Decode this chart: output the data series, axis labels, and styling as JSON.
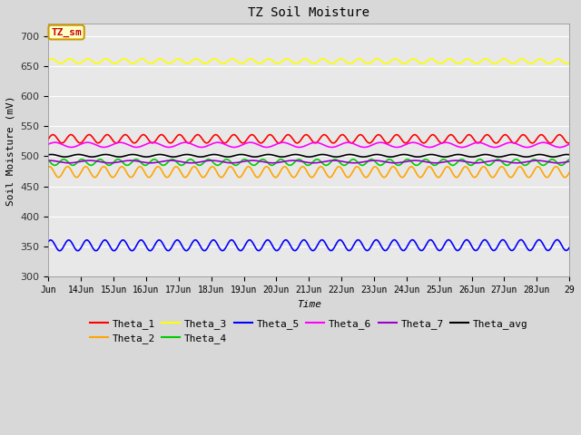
{
  "title": "TZ Soil Moisture",
  "xlabel": "Time",
  "ylabel": "Soil Moisture (mV)",
  "ylim": [
    300,
    720
  ],
  "yticks": [
    300,
    350,
    400,
    450,
    500,
    550,
    600,
    650,
    700
  ],
  "x_tick_labels": [
    "Jun",
    "14Jun",
    "15Jun",
    "16Jun",
    "17Jun",
    "18Jun",
    "19Jun",
    "20Jun",
    "21Jun",
    "22Jun",
    "23Jun",
    "24Jun",
    "25Jun",
    "26Jun",
    "27Jun",
    "28Jun",
    "29"
  ],
  "series": [
    {
      "name": "Theta_1",
      "color": "#ff0000",
      "base": 529,
      "amplitude": 7,
      "trend": -0.008,
      "cycles_per_day": 1.8,
      "phase": 0.0
    },
    {
      "name": "Theta_2",
      "color": "#ffa500",
      "base": 474,
      "amplitude": 9,
      "trend": -0.008,
      "cycles_per_day": 1.8,
      "phase": 1.2
    },
    {
      "name": "Theta_3",
      "color": "#ffff00",
      "base": 658,
      "amplitude": 4,
      "trend": -0.018,
      "cycles_per_day": 1.8,
      "phase": 0.5
    },
    {
      "name": "Theta_4",
      "color": "#00cc00",
      "base": 490,
      "amplitude": 5,
      "trend": -0.003,
      "cycles_per_day": 1.8,
      "phase": 2.5
    },
    {
      "name": "Theta_5",
      "color": "#0000ff",
      "base": 352,
      "amplitude": 9,
      "trend": 0.03,
      "cycles_per_day": 1.8,
      "phase": 0.8
    },
    {
      "name": "Theta_6",
      "color": "#ff00ff",
      "base": 519,
      "amplitude": 4,
      "trend": -0.006,
      "cycles_per_day": 1.0,
      "phase": 0.3
    },
    {
      "name": "Theta_7",
      "color": "#9900cc",
      "base": 491,
      "amplitude": 2,
      "trend": -0.002,
      "cycles_per_day": 0.8,
      "phase": 1.5
    },
    {
      "name": "Theta_avg",
      "color": "#000000",
      "base": 501,
      "amplitude": 2,
      "trend": -0.002,
      "cycles_per_day": 1.2,
      "phase": 0.9
    }
  ],
  "legend_box_text": "TZ_sm",
  "legend_box_facecolor": "#ffffcc",
  "legend_box_edgecolor": "#cc9900",
  "legend_box_textcolor": "#cc0000",
  "fig_bg_color": "#d8d8d8",
  "plot_bg_color": "#e8e8e8",
  "grid_color": "#ffffff",
  "n_points": 480,
  "n_days": 16
}
